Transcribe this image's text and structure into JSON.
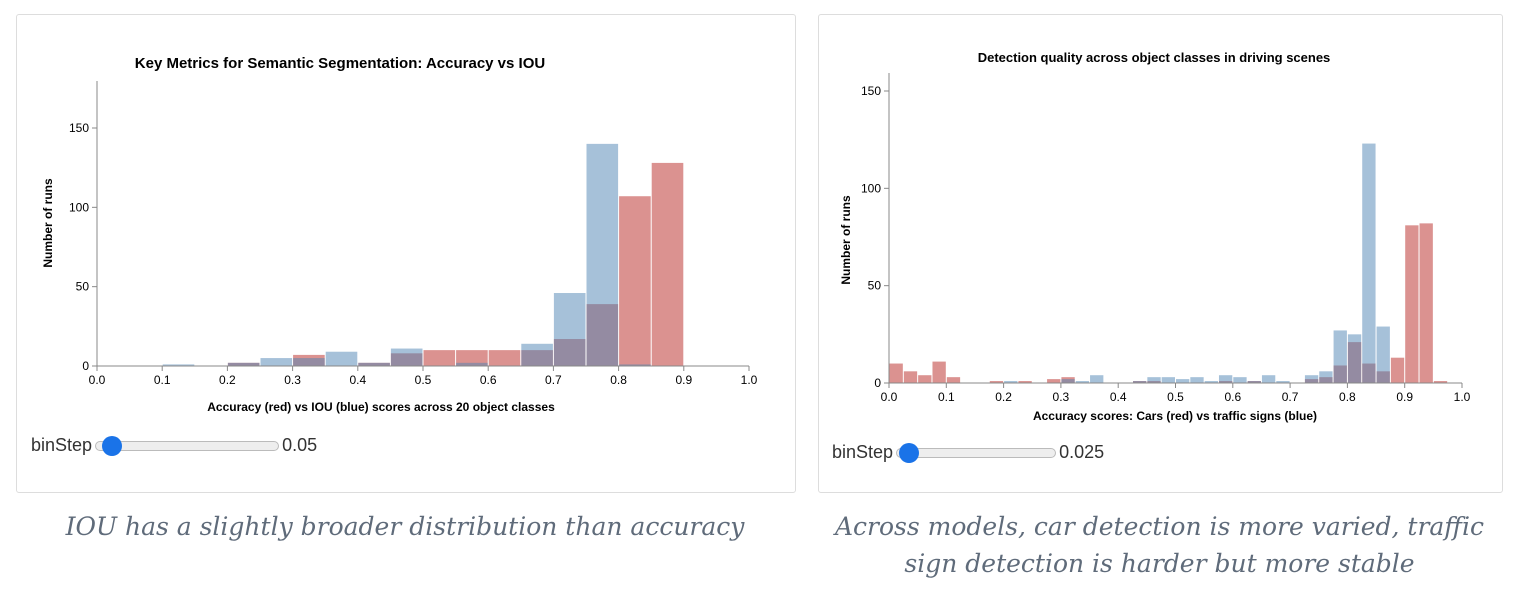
{
  "charts_meta": {
    "red_color": "#db9290",
    "blue_color": "#4d83b3"
  },
  "chart_data": [
    {
      "type": "bar",
      "title": "Key Metrics for Semantic Segmentation: Accuracy vs IOU",
      "xlabel": "Accuracy (red) vs IOU (blue) scores across 20 object classes",
      "ylabel": "Number of runs",
      "xlim": [
        0,
        1
      ],
      "ylim": [
        0,
        180
      ],
      "xticks": [
        "0.0",
        "0.1",
        "0.2",
        "0.3",
        "0.4",
        "0.5",
        "0.6",
        "0.7",
        "0.8",
        "0.9",
        "1.0"
      ],
      "yticks": [
        "0",
        "50",
        "100",
        "150"
      ],
      "bin_step": 0.05,
      "bin_starts": [
        0.1,
        0.2,
        0.25,
        0.3,
        0.35,
        0.4,
        0.45,
        0.5,
        0.55,
        0.6,
        0.65,
        0.7,
        0.75,
        0.8,
        0.85
      ],
      "series": [
        {
          "color": "red",
          "values": [
            0,
            2,
            0,
            7,
            0,
            2,
            8,
            10,
            10,
            10,
            10,
            17,
            39,
            107,
            128
          ]
        },
        {
          "color": "blue",
          "values": [
            1,
            2,
            5,
            5,
            9,
            2,
            11,
            0,
            2,
            0,
            14,
            46,
            140,
            1,
            0
          ]
        }
      ],
      "slider": {
        "label": "binStep",
        "value": "0.05",
        "fraction": 0.05
      }
    },
    {
      "type": "bar",
      "title": "Detection quality across object classes in driving scenes",
      "xlabel": "Accuracy scores: Cars (red) vs traffic signs (blue)",
      "ylabel": "Number of runs",
      "xlim": [
        0,
        1
      ],
      "ylim": [
        0,
        160
      ],
      "xticks": [
        "0.0",
        "0.1",
        "0.2",
        "0.3",
        "0.4",
        "0.5",
        "0.6",
        "0.7",
        "0.8",
        "0.9",
        "1.0"
      ],
      "yticks": [
        "0",
        "50",
        "100",
        "150"
      ],
      "bin_step": 0.025,
      "bin_starts": [
        0,
        0.025,
        0.05,
        0.075,
        0.1,
        0.175,
        0.2,
        0.225,
        0.275,
        0.3,
        0.325,
        0.35,
        0.425,
        0.45,
        0.475,
        0.5,
        0.525,
        0.55,
        0.575,
        0.6,
        0.625,
        0.65,
        0.675,
        0.725,
        0.75,
        0.775,
        0.8,
        0.825,
        0.85,
        0.875,
        0.9,
        0.925,
        0.95
      ],
      "series": [
        {
          "color": "red",
          "values": [
            10,
            6,
            4,
            11,
            3,
            1,
            0,
            1,
            2,
            3,
            0,
            0,
            1,
            1,
            0,
            0,
            0,
            0,
            1,
            0,
            1,
            0,
            0,
            2,
            3,
            9,
            21,
            10,
            6,
            13,
            81,
            82,
            1
          ]
        },
        {
          "color": "blue",
          "values": [
            0,
            0,
            0,
            0,
            0,
            0,
            1,
            0,
            0,
            2,
            1,
            4,
            1,
            3,
            3,
            2,
            3,
            1,
            4,
            3,
            1,
            4,
            1,
            4,
            6,
            27,
            25,
            123,
            29,
            0,
            0,
            0,
            0
          ]
        }
      ],
      "slider": {
        "label": "binStep",
        "value": "0.025",
        "fraction": 0.03
      }
    }
  ],
  "captions": [
    "IOU has a slightly broader distribution than accuracy",
    "Across models, car detection is more varied, traffic sign detection is harder but more stable"
  ]
}
